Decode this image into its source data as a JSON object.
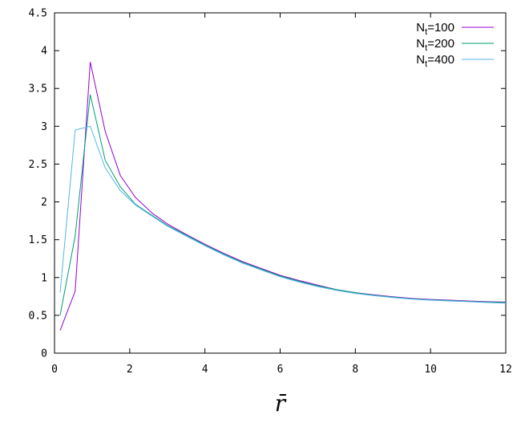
{
  "chart_data": {
    "type": "line",
    "title": "",
    "xlabel": "r̄",
    "ylabel": "",
    "xlim": [
      0,
      12
    ],
    "ylim": [
      0,
      4.5
    ],
    "xticks": [
      0,
      2,
      4,
      6,
      8,
      10,
      12
    ],
    "yticks": [
      0,
      0.5,
      1,
      1.5,
      2,
      2.5,
      3,
      3.5,
      4,
      4.5
    ],
    "xtick_labels": [
      "0",
      "2",
      "4",
      "6",
      "8",
      "10",
      "12"
    ],
    "ytick_labels": [
      "0",
      "0.5",
      "1",
      "1.5",
      "2",
      "2.5",
      "3",
      "3.5",
      "4",
      "4.5"
    ],
    "grid": false,
    "legend_position": "top-right",
    "series": [
      {
        "name": "N",
        "name_sub": "t",
        "name_suffix": "=100",
        "color": "#9400d3",
        "x": [
          0.15,
          0.55,
          0.95,
          1.35,
          1.75,
          2.15,
          2.6,
          3.0,
          3.5,
          4.0,
          4.5,
          5.0,
          5.5,
          6.0,
          6.5,
          7.0,
          7.5,
          8.0,
          8.5,
          9.0,
          9.5,
          10.0,
          10.5,
          11.0,
          11.5,
          12.0
        ],
        "values": [
          0.3,
          0.82,
          3.85,
          2.93,
          2.35,
          2.06,
          1.85,
          1.71,
          1.57,
          1.44,
          1.32,
          1.21,
          1.12,
          1.03,
          0.96,
          0.9,
          0.84,
          0.8,
          0.77,
          0.745,
          0.725,
          0.71,
          0.7,
          0.69,
          0.68,
          0.675
        ]
      },
      {
        "name": "N",
        "name_sub": "t",
        "name_suffix": "=200",
        "color": "#009e73",
        "x": [
          0.15,
          0.55,
          0.95,
          1.35,
          1.75,
          2.15,
          2.6,
          3.0,
          3.5,
          4.0,
          4.5,
          5.0,
          5.5,
          6.0,
          6.5,
          7.0,
          7.5,
          8.0,
          8.5,
          9.0,
          9.5,
          10.0,
          10.5,
          11.0,
          11.5,
          12.0
        ],
        "values": [
          0.5,
          1.55,
          3.42,
          2.55,
          2.2,
          1.97,
          1.82,
          1.69,
          1.56,
          1.43,
          1.31,
          1.2,
          1.11,
          1.02,
          0.95,
          0.89,
          0.84,
          0.8,
          0.765,
          0.74,
          0.72,
          0.705,
          0.695,
          0.685,
          0.675,
          0.67
        ]
      },
      {
        "name": "N",
        "name_sub": "t",
        "name_suffix": "=400",
        "color": "#56b4e9",
        "x": [
          0.15,
          0.55,
          0.95,
          1.35,
          1.75,
          2.15,
          2.6,
          3.0,
          3.5,
          4.0,
          4.5,
          5.0,
          5.5,
          6.0,
          6.5,
          7.0,
          7.5,
          8.0,
          8.5,
          9.0,
          9.5,
          10.0,
          10.5,
          11.0,
          11.5,
          12.0
        ],
        "values": [
          0.8,
          2.95,
          3.0,
          2.45,
          2.15,
          1.96,
          1.81,
          1.68,
          1.55,
          1.42,
          1.3,
          1.19,
          1.1,
          1.01,
          0.94,
          0.88,
          0.83,
          0.79,
          0.76,
          0.735,
          0.715,
          0.7,
          0.69,
          0.68,
          0.67,
          0.66
        ]
      }
    ]
  }
}
